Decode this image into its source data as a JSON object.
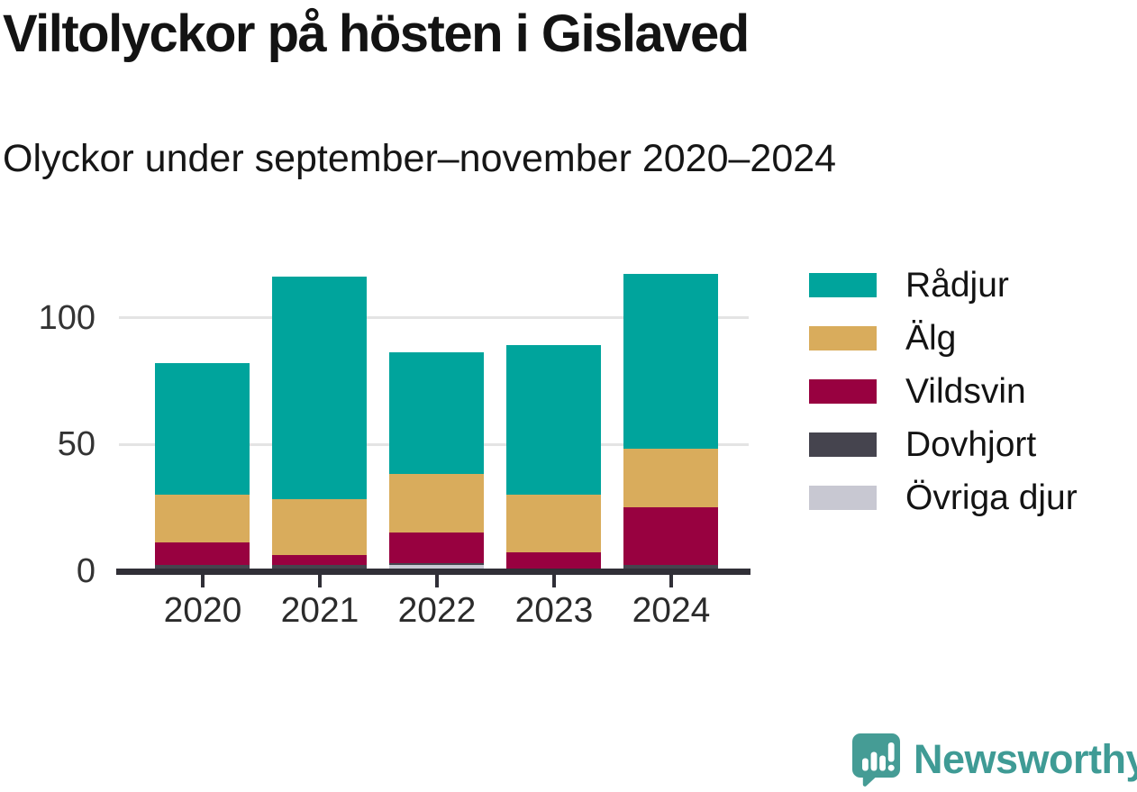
{
  "header": {
    "title": "Viltolyckor på hösten i Gislaved",
    "subtitle": "Olyckor under september–november 2020–2024"
  },
  "chart_data": {
    "type": "bar",
    "stacked": true,
    "title": "Viltolyckor på hösten i Gislaved",
    "subtitle": "Olyckor under september–november 2020–2024",
    "categories": [
      "2020",
      "2021",
      "2022",
      "2023",
      "2024"
    ],
    "series": [
      {
        "name": "Rådjur",
        "color": "#00A49C",
        "values": [
          52,
          88,
          48,
          59,
          69
        ]
      },
      {
        "name": "Älg",
        "color": "#D9AC5C",
        "values": [
          19,
          22,
          23,
          23,
          23
        ]
      },
      {
        "name": "Vildsvin",
        "color": "#980140",
        "values": [
          9,
          4,
          12,
          7,
          23
        ]
      },
      {
        "name": "Dovhjort",
        "color": "#45444E",
        "values": [
          2,
          2,
          1,
          0,
          2
        ]
      },
      {
        "name": "Övriga djur",
        "color": "#C8C8D2",
        "values": [
          0,
          0,
          2,
          0,
          0
        ]
      }
    ],
    "stack_order_bottom_to_top": [
      "Övriga djur",
      "Dovhjort",
      "Vildsvin",
      "Älg",
      "Rådjur"
    ],
    "totals": [
      82,
      116,
      86,
      89,
      117
    ],
    "xlabel": "",
    "ylabel": "",
    "yticks": [
      0,
      50,
      100
    ],
    "ylim": [
      0,
      120
    ],
    "grid": "horizontal",
    "legend_position": "right"
  },
  "colors": {
    "background": "#FFFFFF",
    "axis_line": "#302F37",
    "gridline": "#E4E4E4",
    "tick_label": "#333333",
    "title_text": "#131313",
    "brand_teal": "#3F9B95",
    "logo_bubble": "#459C95"
  },
  "footer": {
    "brand": "Newsworthy"
  }
}
